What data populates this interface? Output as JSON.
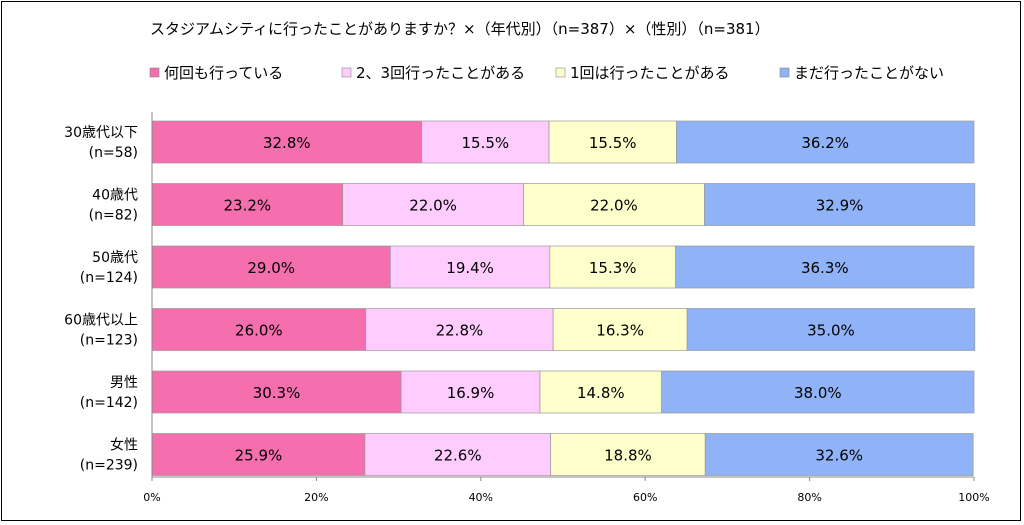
{
  "chart_data": {
    "type": "bar",
    "orientation": "horizontal-stacked-100",
    "title": "スタジアムシティに行ったことがありますか？×（年代別）（n=387）×（性別）（n=381）",
    "legend_position": "top",
    "grid": false,
    "xlim": [
      0,
      100
    ],
    "x_ticks": [
      "0%",
      "20%",
      "40%",
      "60%",
      "80%",
      "100%"
    ],
    "categories": [
      {
        "line1": "30歳代以下",
        "line2": "(n=58)"
      },
      {
        "line1": "40歳代",
        "line2": "(n=82)"
      },
      {
        "line1": "50歳代",
        "line2": "(n=124)"
      },
      {
        "line1": "60歳代以上",
        "line2": "(n=123)"
      },
      {
        "line1": "男性",
        "line2": "(n=142)"
      },
      {
        "line1": "女性",
        "line2": "(n=239)"
      }
    ],
    "series": [
      {
        "name": "何回も行っている",
        "color": "#f56fae",
        "values": [
          32.8,
          23.2,
          29.0,
          26.0,
          30.3,
          25.9
        ]
      },
      {
        "name": "2、3回行ったことがある",
        "color": "#ffccff",
        "values": [
          15.5,
          22.0,
          19.4,
          22.8,
          16.9,
          22.6
        ]
      },
      {
        "name": "1回は行ったことがある",
        "color": "#ffffcc",
        "values": [
          15.5,
          22.0,
          15.3,
          16.3,
          14.8,
          18.8
        ]
      },
      {
        "name": "まだ行ったことがない",
        "color": "#8fb3f6",
        "values": [
          36.2,
          32.9,
          36.3,
          35.0,
          38.0,
          32.6
        ]
      }
    ]
  }
}
